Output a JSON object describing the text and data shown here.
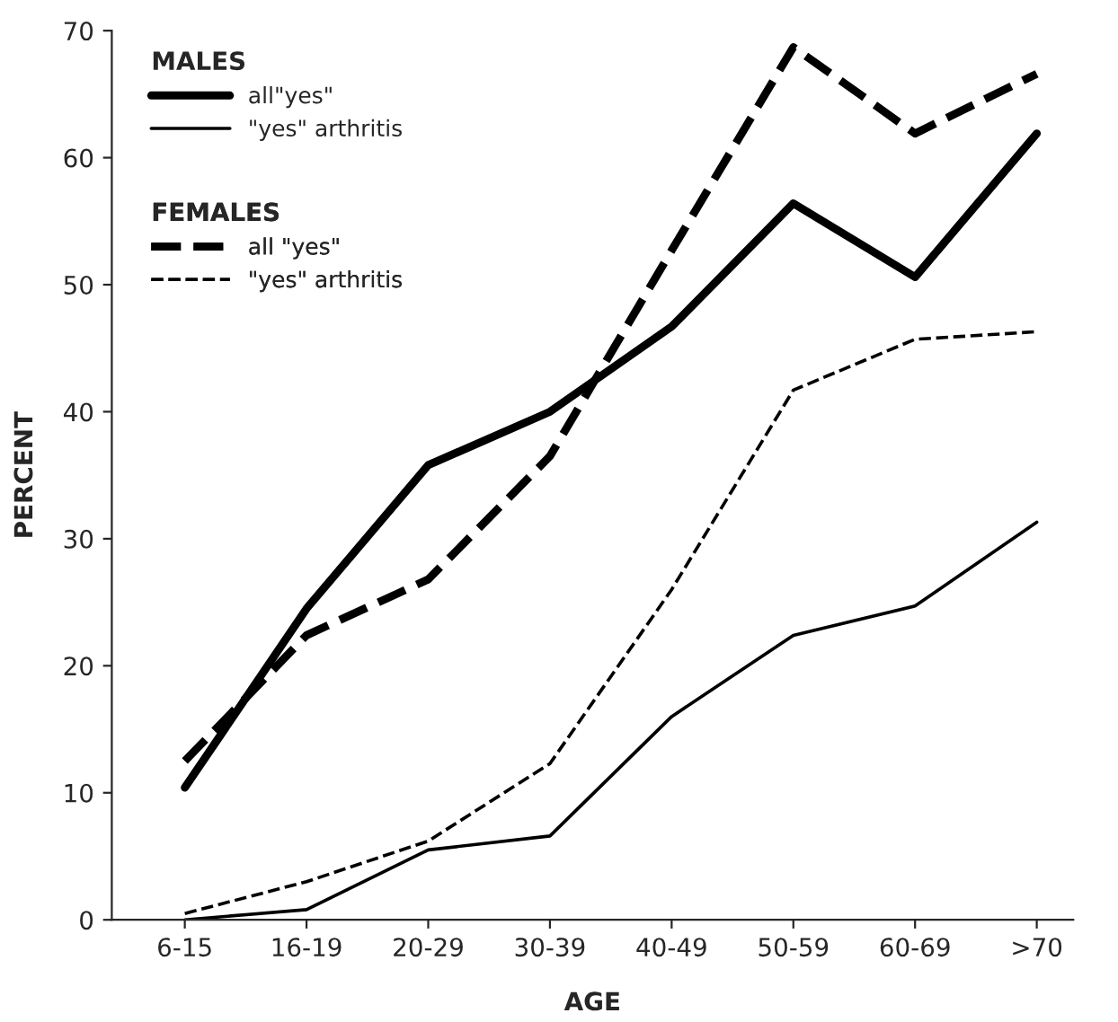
{
  "chart_data": {
    "type": "line",
    "xlabel": "AGE",
    "ylabel": "PERCENT",
    "categories": [
      "6-15",
      "16-19",
      "20-29",
      "30-39",
      "40-49",
      "50-59",
      "60-69",
      ">70"
    ],
    "series": [
      {
        "name": "all\"yes\"",
        "color": "#000000",
        "line_style": "solid",
        "values": [
          10.4,
          24.5,
          35.8,
          40,
          46.7,
          56.4,
          50.6,
          61.9
        ]
      },
      {
        "name": "\"yes\" arthritis",
        "color": "#000000",
        "line_style": "solid",
        "values": [
          0,
          0.8,
          5.5,
          6.6,
          16,
          22.4,
          24.7,
          31.3
        ]
      },
      {
        "name": "all \"yes\"",
        "color": "#000000",
        "line_style": "dashed",
        "values": [
          12.5,
          22.4,
          26.8,
          36.5,
          52.7,
          68.7,
          61.9,
          66.6
        ]
      },
      {
        "name": "\"yes\" arthritis",
        "color": "#000000",
        "line_style": "dashed",
        "values": [
          0.5,
          3,
          6.2,
          12.3,
          26,
          41.7,
          45.7,
          46.3
        ]
      }
    ],
    "annotations": [
      "MALES",
      "FEMALES"
    ],
    "ylim": [
      0,
      70
    ],
    "yticks": [
      0,
      10,
      20,
      30,
      40,
      50,
      60,
      70
    ],
    "legend": "top left",
    "grid": false
  }
}
